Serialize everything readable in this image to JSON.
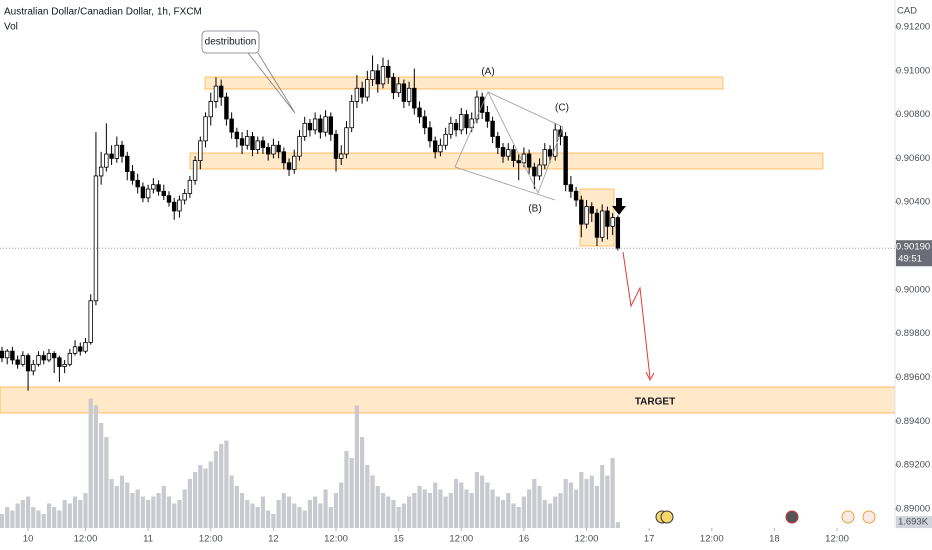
{
  "chart_data": {
    "type": "candlestick",
    "title": "Australian Dollar/Canadian Dollar, 1h, FXCM",
    "volume_title": "Vol",
    "currency": "CAD",
    "series": [
      {
        "name": "AUDCAD",
        "up_color": "#ffffff",
        "down_color": "#000000",
        "ohlc": [
          [
            0.8972,
            0.8974,
            0.8967,
            0.8969
          ],
          [
            0.8969,
            0.8973,
            0.8966,
            0.8972
          ],
          [
            0.8972,
            0.8974,
            0.8966,
            0.8968
          ],
          [
            0.8968,
            0.897,
            0.8964,
            0.8966
          ],
          [
            0.8966,
            0.8972,
            0.8965,
            0.897
          ],
          [
            0.897,
            0.8971,
            0.8954,
            0.8963
          ],
          [
            0.8963,
            0.8968,
            0.8961,
            0.8966
          ],
          [
            0.8966,
            0.8972,
            0.8965,
            0.897
          ],
          [
            0.897,
            0.8972,
            0.8966,
            0.8968
          ],
          [
            0.8968,
            0.8973,
            0.8967,
            0.8971
          ],
          [
            0.8971,
            0.8972,
            0.8962,
            0.8969
          ],
          [
            0.8969,
            0.897,
            0.8958,
            0.8965
          ],
          [
            0.8965,
            0.8968,
            0.8962,
            0.8966
          ],
          [
            0.8966,
            0.8973,
            0.8965,
            0.8971
          ],
          [
            0.8971,
            0.8977,
            0.897,
            0.8974
          ],
          [
            0.8974,
            0.8976,
            0.897,
            0.8972
          ],
          [
            0.8972,
            0.8978,
            0.8971,
            0.8976
          ],
          [
            0.8976,
            0.8998,
            0.8975,
            0.8995
          ],
          [
            0.8995,
            0.9072,
            0.8993,
            0.9052
          ],
          [
            0.9052,
            0.9063,
            0.9048,
            0.9056
          ],
          [
            0.9056,
            0.9076,
            0.9054,
            0.9062
          ],
          [
            0.9062,
            0.9066,
            0.9057,
            0.906
          ],
          [
            0.906,
            0.907,
            0.9058,
            0.9066
          ],
          [
            0.9066,
            0.9068,
            0.9058,
            0.9061
          ],
          [
            0.9061,
            0.9063,
            0.905,
            0.9054
          ],
          [
            0.9054,
            0.9057,
            0.9048,
            0.905
          ],
          [
            0.905,
            0.9053,
            0.9044,
            0.9047
          ],
          [
            0.9047,
            0.9049,
            0.904,
            0.9042
          ],
          [
            0.9042,
            0.9048,
            0.904,
            0.9046
          ],
          [
            0.9046,
            0.9051,
            0.9044,
            0.9048
          ],
          [
            0.9048,
            0.905,
            0.9043,
            0.9045
          ],
          [
            0.9045,
            0.9048,
            0.9041,
            0.9043
          ],
          [
            0.9043,
            0.9045,
            0.9038,
            0.904
          ],
          [
            0.904,
            0.9042,
            0.9032,
            0.9036
          ],
          [
            0.9036,
            0.9043,
            0.9033,
            0.9041
          ],
          [
            0.9041,
            0.9046,
            0.9039,
            0.9044
          ],
          [
            0.9044,
            0.9052,
            0.9042,
            0.905
          ],
          [
            0.905,
            0.9061,
            0.9048,
            0.9059
          ],
          [
            0.9059,
            0.907,
            0.9055,
            0.9068
          ],
          [
            0.9068,
            0.9081,
            0.9065,
            0.9079
          ],
          [
            0.9079,
            0.909,
            0.9075,
            0.9086
          ],
          [
            0.9086,
            0.9097,
            0.9083,
            0.9093
          ],
          [
            0.9093,
            0.9096,
            0.9084,
            0.9088
          ],
          [
            0.9088,
            0.909,
            0.9075,
            0.9078
          ],
          [
            0.9078,
            0.9081,
            0.9069,
            0.9072
          ],
          [
            0.9072,
            0.9074,
            0.9065,
            0.9069
          ],
          [
            0.9069,
            0.9072,
            0.9062,
            0.9066
          ],
          [
            0.9066,
            0.9073,
            0.9064,
            0.907
          ],
          [
            0.907,
            0.9072,
            0.9061,
            0.9064
          ],
          [
            0.9064,
            0.907,
            0.9062,
            0.9068
          ],
          [
            0.9068,
            0.907,
            0.9062,
            0.9065
          ],
          [
            0.9065,
            0.9067,
            0.9059,
            0.9062
          ],
          [
            0.9062,
            0.9069,
            0.906,
            0.9066
          ],
          [
            0.9066,
            0.9068,
            0.906,
            0.9063
          ],
          [
            0.9063,
            0.9065,
            0.9055,
            0.9058
          ],
          [
            0.9058,
            0.906,
            0.9052,
            0.9055
          ],
          [
            0.9055,
            0.9064,
            0.9053,
            0.9061
          ],
          [
            0.9061,
            0.9073,
            0.9059,
            0.907
          ],
          [
            0.907,
            0.9079,
            0.9068,
            0.9076
          ],
          [
            0.9076,
            0.9078,
            0.907,
            0.9073
          ],
          [
            0.9073,
            0.9081,
            0.9071,
            0.9078
          ],
          [
            0.9078,
            0.908,
            0.9069,
            0.9072
          ],
          [
            0.9072,
            0.9082,
            0.907,
            0.9079
          ],
          [
            0.9079,
            0.9081,
            0.9068,
            0.9071
          ],
          [
            0.9071,
            0.9073,
            0.9054,
            0.906
          ],
          [
            0.906,
            0.9066,
            0.9057,
            0.9062
          ],
          [
            0.9062,
            0.9077,
            0.906,
            0.9074
          ],
          [
            0.9074,
            0.9089,
            0.9072,
            0.9086
          ],
          [
            0.9086,
            0.9098,
            0.9083,
            0.9092
          ],
          [
            0.9092,
            0.9095,
            0.9085,
            0.9088
          ],
          [
            0.9088,
            0.91,
            0.9086,
            0.9096
          ],
          [
            0.9096,
            0.9107,
            0.9093,
            0.91
          ],
          [
            0.91,
            0.9103,
            0.909,
            0.9094
          ],
          [
            0.9094,
            0.9106,
            0.9092,
            0.9102
          ],
          [
            0.9102,
            0.9105,
            0.9094,
            0.9097
          ],
          [
            0.9097,
            0.9099,
            0.9087,
            0.909
          ],
          [
            0.909,
            0.9097,
            0.9088,
            0.9094
          ],
          [
            0.9094,
            0.9096,
            0.9083,
            0.9086
          ],
          [
            0.9086,
            0.9095,
            0.9084,
            0.9092
          ],
          [
            0.9092,
            0.9101,
            0.908,
            0.9083
          ],
          [
            0.9083,
            0.9086,
            0.9076,
            0.9079
          ],
          [
            0.9079,
            0.9082,
            0.9071,
            0.9074
          ],
          [
            0.9074,
            0.9077,
            0.9065,
            0.9068
          ],
          [
            0.9068,
            0.907,
            0.906,
            0.9063
          ],
          [
            0.9063,
            0.9069,
            0.9061,
            0.9066
          ],
          [
            0.9066,
            0.9074,
            0.9064,
            0.9071
          ],
          [
            0.9071,
            0.9079,
            0.9069,
            0.9076
          ],
          [
            0.9076,
            0.9078,
            0.907,
            0.9073
          ],
          [
            0.9073,
            0.9083,
            0.9071,
            0.908
          ],
          [
            0.908,
            0.9082,
            0.9071,
            0.9074
          ],
          [
            0.9074,
            0.9081,
            0.9072,
            0.9078
          ],
          [
            0.9078,
            0.9091,
            0.9076,
            0.9088
          ],
          [
            0.9088,
            0.909,
            0.9078,
            0.9081
          ],
          [
            0.9081,
            0.9084,
            0.9074,
            0.9077
          ],
          [
            0.9077,
            0.9079,
            0.9067,
            0.907
          ],
          [
            0.907,
            0.9072,
            0.9062,
            0.9065
          ],
          [
            0.9065,
            0.9067,
            0.9058,
            0.9061
          ],
          [
            0.9061,
            0.9067,
            0.9059,
            0.9064
          ],
          [
            0.9064,
            0.9066,
            0.9056,
            0.9059
          ],
          [
            0.9059,
            0.9062,
            0.905,
            0.9058
          ],
          [
            0.9058,
            0.9065,
            0.9056,
            0.9062
          ],
          [
            0.9062,
            0.9064,
            0.9053,
            0.9056
          ],
          [
            0.9056,
            0.9058,
            0.9046,
            0.9052
          ],
          [
            0.9052,
            0.906,
            0.905,
            0.9057
          ],
          [
            0.9057,
            0.9067,
            0.9055,
            0.9064
          ],
          [
            0.9064,
            0.9066,
            0.9058,
            0.9061
          ],
          [
            0.9061,
            0.9076,
            0.9059,
            0.9073
          ],
          [
            0.9073,
            0.9075,
            0.9066,
            0.907
          ],
          [
            0.907,
            0.9072,
            0.9045,
            0.9048
          ],
          [
            0.9048,
            0.9052,
            0.9042,
            0.9045
          ],
          [
            0.9045,
            0.9047,
            0.9038,
            0.9041
          ],
          [
            0.9041,
            0.9043,
            0.9024,
            0.903
          ],
          [
            0.903,
            0.9041,
            0.9028,
            0.9038
          ],
          [
            0.9038,
            0.904,
            0.9031,
            0.9035
          ],
          [
            0.9035,
            0.9037,
            0.902,
            0.9024
          ],
          [
            0.9024,
            0.9039,
            0.9022,
            0.9036
          ],
          [
            0.9036,
            0.9038,
            0.9023,
            0.9029
          ],
          [
            0.9029,
            0.9035,
            0.9025,
            0.9033
          ],
          [
            0.9033,
            0.9034,
            0.9018,
            0.9019
          ]
        ],
        "volume_color": "#c9cacf",
        "volume": [
          4000,
          6000,
          5000,
          7000,
          8000,
          9000,
          6000,
          5000,
          4000,
          7000,
          6000,
          5000,
          8000,
          7000,
          9000,
          8000,
          10000,
          37000,
          35000,
          30000,
          26000,
          14000,
          12000,
          15000,
          13000,
          10000,
          11000,
          9000,
          8000,
          9000,
          10000,
          12000,
          9000,
          7000,
          8000,
          11000,
          14000,
          16000,
          18000,
          17000,
          19000,
          22000,
          24000,
          25000,
          15000,
          12000,
          10000,
          8000,
          7000,
          6000,
          9000,
          5000,
          4000,
          8000,
          10000,
          9000,
          7000,
          6000,
          5000,
          8000,
          9000,
          7000,
          11000,
          6000,
          10000,
          13000,
          22000,
          20000,
          35000,
          26000,
          18000,
          15000,
          12000,
          10000,
          9000,
          8000,
          6000,
          7000,
          9000,
          10000,
          12000,
          11000,
          10000,
          13000,
          11000,
          9000,
          10000,
          14000,
          13000,
          11000,
          10000,
          16000,
          15000,
          13000,
          11000,
          9000,
          8000,
          10000,
          7000,
          6000,
          9000,
          11000,
          14000,
          12000,
          8000,
          7000,
          9000,
          10000,
          14000,
          13000,
          11000,
          16000,
          14000,
          15000,
          12000,
          18000,
          15000,
          20000,
          1693
        ]
      }
    ],
    "xlim": [
      -0.38,
      171.1
    ],
    "xticks": [
      {
        "value": 5,
        "label": "10"
      },
      {
        "value": 16,
        "label": "12:00"
      },
      {
        "value": 28,
        "label": "11"
      },
      {
        "value": 40,
        "label": "12:00"
      },
      {
        "value": 52,
        "label": "12"
      },
      {
        "value": 64,
        "label": "12:00"
      },
      {
        "value": 76,
        "label": "15"
      },
      {
        "value": 88,
        "label": "12:00"
      },
      {
        "value": 100,
        "label": "16"
      },
      {
        "value": 112,
        "label": "12:00"
      },
      {
        "value": 124,
        "label": "17"
      },
      {
        "value": 136,
        "label": "12:00"
      },
      {
        "value": 148,
        "label": "18"
      },
      {
        "value": 160,
        "label": "12:00"
      }
    ],
    "ylim": [
      0.88913,
      0.91323
    ],
    "yticks": [
      {
        "value": 0.89,
        "label": "0.89000"
      },
      {
        "value": 0.892,
        "label": "0.89200"
      },
      {
        "value": 0.894,
        "label": "0.89400"
      },
      {
        "value": 0.896,
        "label": "0.89600"
      },
      {
        "value": 0.898,
        "label": "0.89800"
      },
      {
        "value": 0.9,
        "label": "0.90000"
      },
      {
        "value": 0.902,
        "label": "0.90200"
      },
      {
        "value": 0.904,
        "label": "0.90400"
      },
      {
        "value": 0.906,
        "label": "0.90600"
      },
      {
        "value": 0.908,
        "label": "0.90800"
      },
      {
        "value": 0.91,
        "label": "0.91000"
      },
      {
        "value": 0.912,
        "label": "0.91200"
      }
    ],
    "volume_ylim": [
      0,
      40000
    ],
    "last_price": {
      "value": 0.9019,
      "label": "0.90190"
    },
    "countdown": "49:51",
    "last_volume": {
      "value": 1693,
      "label": "1.693K"
    },
    "annotations": {
      "distribution": "destribution",
      "a": "(A)",
      "b": "(B)",
      "c": "(C)",
      "target": "TARGET"
    }
  }
}
